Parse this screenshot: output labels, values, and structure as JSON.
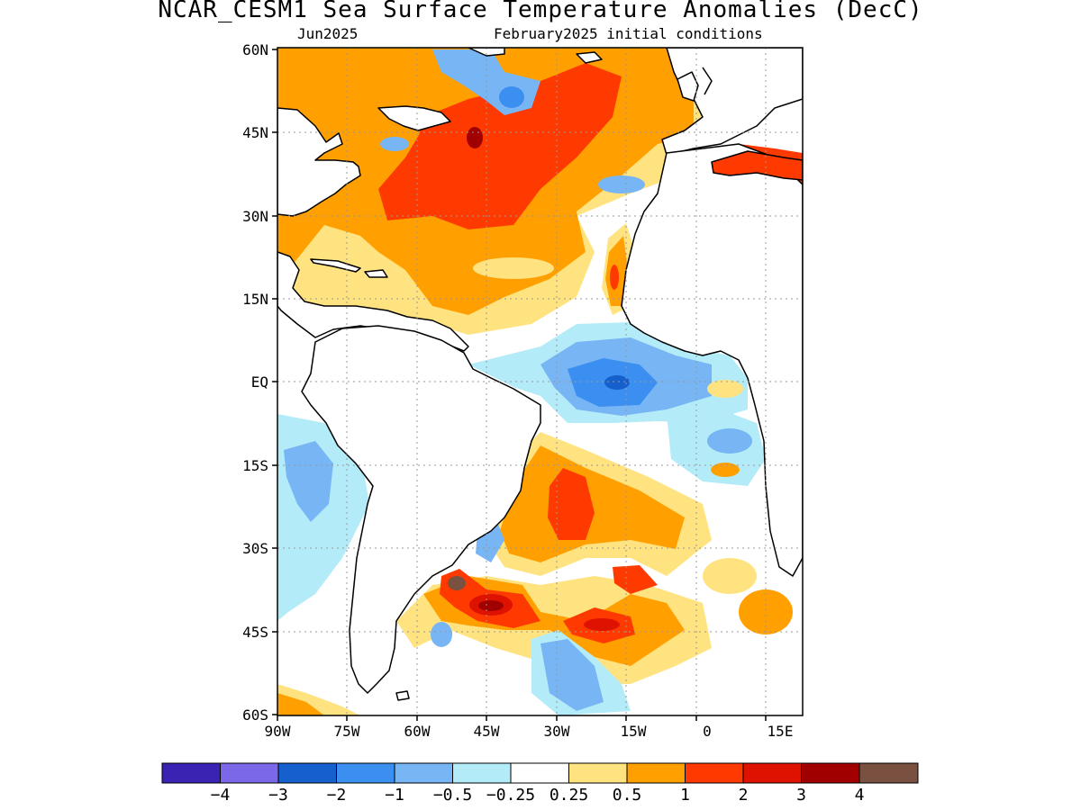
{
  "title": "NCAR_CESM1 Sea Surface Temperature Anomalies (DecC)",
  "subtitle_left": "Jun2025",
  "subtitle_right": "February2025 initial conditions",
  "axes": {
    "lat_labels": [
      "60N",
      "45N",
      "30N",
      "15N",
      "EQ",
      "15S",
      "30S",
      "45S",
      "60S"
    ],
    "lon_labels": [
      "90W",
      "75W",
      "60W",
      "45W",
      "30W",
      "15W",
      "0",
      "15E"
    ]
  },
  "colorbar": {
    "colors": [
      "#3a23b3",
      "#7b68e8",
      "#1560cc",
      "#3b8ff0",
      "#78b5f5",
      "#b3ecf8",
      "#ffffff",
      "#ffe380",
      "#ffa000",
      "#ff3a00",
      "#dd1200",
      "#a00000",
      "#7a5040"
    ],
    "labels": [
      "−4",
      "−3",
      "−2",
      "−1",
      "−0.5",
      "−0.25",
      "0.25",
      "0.5",
      "1",
      "2",
      "3",
      "4"
    ]
  }
}
